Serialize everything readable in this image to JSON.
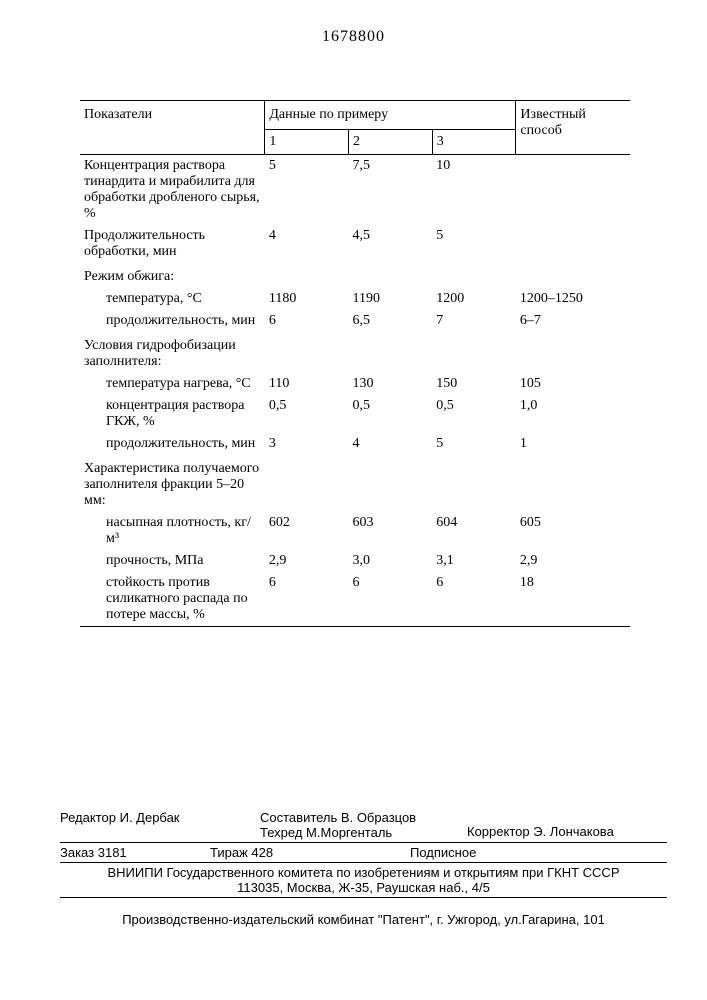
{
  "doc_number": "1678800",
  "table": {
    "header": {
      "indicators": "Показатели",
      "by_example": "Данные по примеру",
      "known_method": "Известный способ",
      "cols": [
        "1",
        "2",
        "3"
      ]
    },
    "rows": [
      {
        "label": "Концентрация раствора тинардита и мирабилита для обработки дробленого сырья, %",
        "indent": false,
        "v1": "5",
        "v2": "7,5",
        "v3": "10",
        "known": ""
      },
      {
        "label": "Продолжительность обработки, мин",
        "indent": false,
        "v1": "4",
        "v2": "4,5",
        "v3": "5",
        "known": ""
      },
      {
        "label": "Режим обжига:",
        "indent": false,
        "section": true
      },
      {
        "label": "температура, °С",
        "indent": true,
        "v1": "1180",
        "v2": "1190",
        "v3": "1200",
        "known": "1200–1250"
      },
      {
        "label": "продолжительность, мин",
        "indent": true,
        "v1": "6",
        "v2": "6,5",
        "v3": "7",
        "known": "6–7"
      },
      {
        "label": "Условия гидрофобизации заполнителя:",
        "indent": false,
        "section": true
      },
      {
        "label": "температура нагрева, °С",
        "indent": true,
        "v1": "110",
        "v2": "130",
        "v3": "150",
        "known": "105"
      },
      {
        "label": "концентрация раствора ГКЖ, %",
        "indent": true,
        "v1": "0,5",
        "v2": "0,5",
        "v3": "0,5",
        "known": "1,0"
      },
      {
        "label": "продолжительность, мин",
        "indent": true,
        "v1": "3",
        "v2": "4",
        "v3": "5",
        "known": "1"
      },
      {
        "label": "Характеристика получаемого заполнителя фракции 5–20 мм:",
        "indent": false,
        "section": true
      },
      {
        "label": "насыпная плотность, кг/м³",
        "indent": true,
        "v1": "602",
        "v2": "603",
        "v3": "604",
        "known": "605"
      },
      {
        "label": "прочность, МПа",
        "indent": true,
        "v1": "2,9",
        "v2": "3,0",
        "v3": "3,1",
        "known": "2,9"
      },
      {
        "label": "стойкость против силикатного распада по потере массы, %",
        "indent": true,
        "v1": "6",
        "v2": "6",
        "v3": "6",
        "known": "18",
        "last": true
      }
    ]
  },
  "footer": {
    "editor_label": "Редактор",
    "editor_name": "И. Дербак",
    "compiler_label": "Составитель",
    "compiler_name": "В. Образцов",
    "techred_label": "Техред",
    "techred_name": "М.Моргенталь",
    "corrector_label": "Корректор",
    "corrector_name": "Э. Лончакова",
    "order_label": "Заказ",
    "order_no": "3181",
    "tirazh_label": "Тираж",
    "tirazh_no": "428",
    "subscription": "Подписное",
    "org": "ВНИИПИ Государственного комитета по изобретениям и открытиям при ГКНТ СССР",
    "org_addr": "113035, Москва, Ж-35, Раушская наб., 4/5",
    "press": "Производственно-издательский комбинат \"Патент\", г. Ужгород, ул.Гагарина, 101"
  }
}
